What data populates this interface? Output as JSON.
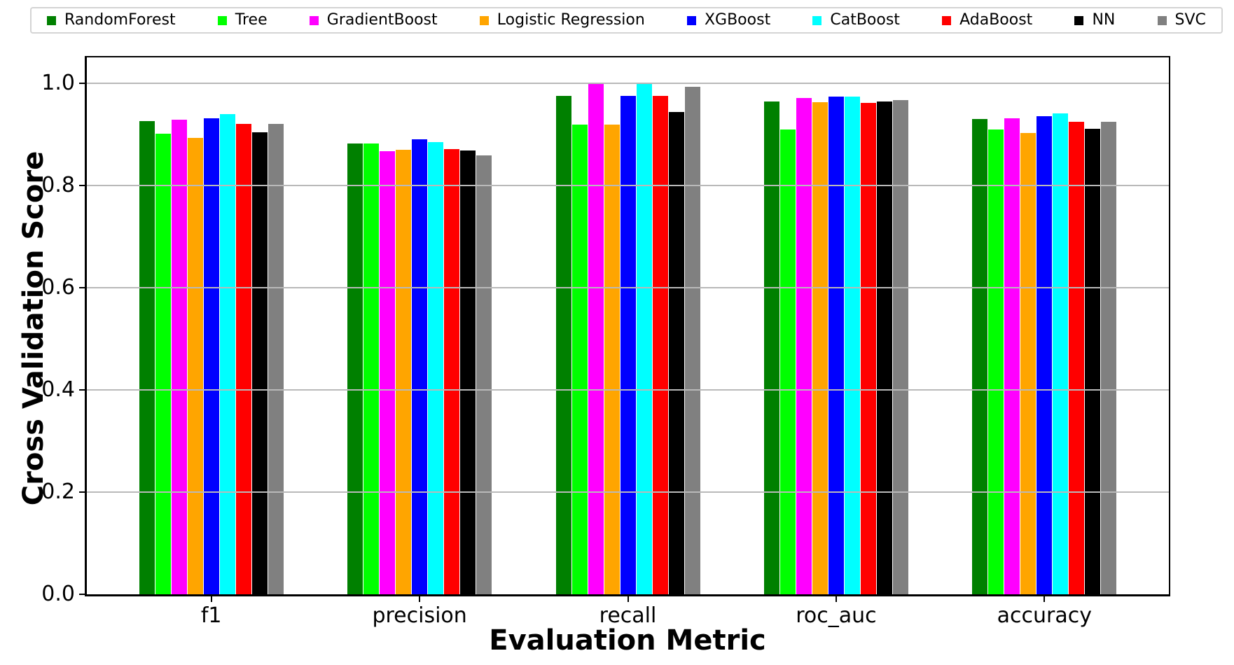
{
  "chart_data": {
    "type": "bar",
    "title": "",
    "xlabel": "Evaluation Metric",
    "ylabel": "Cross Validation Score",
    "categories": [
      "f1",
      "precision",
      "recall",
      "roc_auc",
      "accuracy"
    ],
    "yticks": [
      0.0,
      0.2,
      0.4,
      0.6,
      0.8,
      1.0
    ],
    "ytick_labels": [
      "0.0",
      "0.2",
      "0.4",
      "0.6",
      "0.8",
      "1.0"
    ],
    "ylim": [
      0,
      1.05
    ],
    "grid": true,
    "grid_color": "#b9b9b9",
    "legend_position": "top",
    "background_color": "#ffffff",
    "series": [
      {
        "name": "RandomForest",
        "color": "#008000",
        "values": [
          0.926,
          0.882,
          0.975,
          0.964,
          0.929
        ]
      },
      {
        "name": "Tree",
        "color": "#00ff00",
        "values": [
          0.901,
          0.882,
          0.919,
          0.909,
          0.909
        ]
      },
      {
        "name": "GradientBoost",
        "color": "#ff00ff",
        "values": [
          0.928,
          0.867,
          0.998,
          0.97,
          0.931
        ]
      },
      {
        "name": "Logistic Regression",
        "color": "#ffa500",
        "values": [
          0.892,
          0.87,
          0.919,
          0.963,
          0.902
        ]
      },
      {
        "name": "XGBoost",
        "color": "#0000ff",
        "values": [
          0.931,
          0.89,
          0.975,
          0.973,
          0.935
        ]
      },
      {
        "name": "CatBoost",
        "color": "#00ffff",
        "values": [
          0.939,
          0.885,
          0.999,
          0.973,
          0.941
        ]
      },
      {
        "name": "AdaBoost",
        "color": "#ff0000",
        "values": [
          0.92,
          0.871,
          0.975,
          0.961,
          0.924
        ]
      },
      {
        "name": "NN",
        "color": "#000000",
        "values": [
          0.903,
          0.868,
          0.943,
          0.964,
          0.91
        ]
      },
      {
        "name": "SVC",
        "color": "#808080",
        "values": [
          0.92,
          0.859,
          0.992,
          0.966,
          0.924
        ]
      }
    ]
  }
}
